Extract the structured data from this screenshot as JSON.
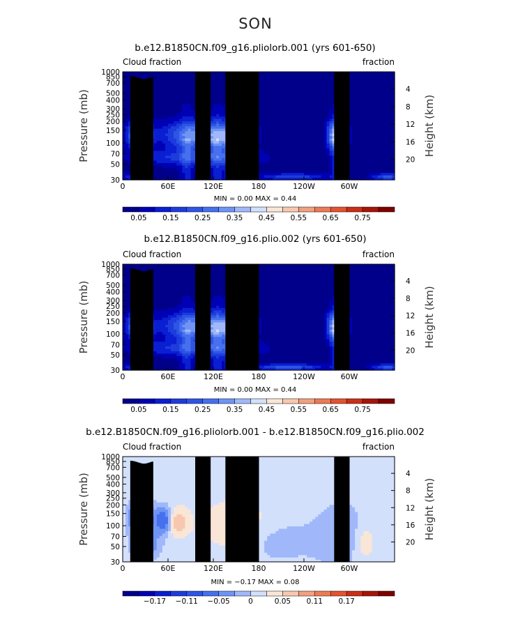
{
  "chart_data": {
    "type": "heatmap",
    "title": "SON",
    "x_ticks": [
      {
        "lon": 0,
        "label": "0"
      },
      {
        "lon": 60,
        "label": "60E"
      },
      {
        "lon": 120,
        "label": "120E"
      },
      {
        "lon": 180,
        "label": "180"
      },
      {
        "lon": 240,
        "label": "120W"
      },
      {
        "lon": 300,
        "label": "60W"
      }
    ],
    "xlim": [
      0,
      360
    ],
    "pressure_ticks": [
      1000,
      850,
      700,
      500,
      400,
      300,
      250,
      200,
      150,
      100,
      70,
      50,
      30
    ],
    "height_ticks": [
      4,
      8,
      12,
      16,
      20
    ],
    "ylabel": "Pressure (mb)",
    "ylabel_right": "Height (km)",
    "panels": [
      {
        "title": "b.e12.B1850CN.f09_g16.pliolorb.001 (yrs 601-650)",
        "left_label": "Cloud fraction",
        "right_label": "fraction",
        "stats": "MIN =    0.00   MAX =    0.44",
        "min": 0.0,
        "max": 0.44,
        "colorbar_labels": [
          "0.05",
          "0.15",
          "0.25",
          "0.35",
          "0.45",
          "0.55",
          "0.65",
          "0.75"
        ],
        "levels": [
          0.0,
          0.05,
          0.1,
          0.15,
          0.2,
          0.25,
          0.3,
          0.35,
          0.4,
          0.45,
          0.5,
          0.55,
          0.6,
          0.65,
          0.7,
          0.75,
          0.8
        ]
      },
      {
        "title": "b.e12.B1850CN.f09_g16.plio.002 (yrs 601-650)",
        "left_label": "Cloud fraction",
        "right_label": "fraction",
        "stats": "MIN =    0.00   MAX =    0.44",
        "min": 0.0,
        "max": 0.44,
        "colorbar_labels": [
          "0.05",
          "0.15",
          "0.25",
          "0.35",
          "0.45",
          "0.55",
          "0.65",
          "0.75"
        ],
        "levels": [
          0.0,
          0.05,
          0.1,
          0.15,
          0.2,
          0.25,
          0.3,
          0.35,
          0.4,
          0.45,
          0.5,
          0.55,
          0.6,
          0.65,
          0.7,
          0.75,
          0.8
        ]
      },
      {
        "title": "b.e12.B1850CN.f09_g16.pliolorb.001 - b.e12.B1850CN.f09_g16.plio.002",
        "left_label": "Cloud fraction",
        "right_label": "fraction",
        "stats": "MIN =   −0.17   MAX =    0.08",
        "min": -0.17,
        "max": 0.08,
        "colorbar_labels": [
          "−0.17",
          "−0.11",
          "−0.05",
          "0",
          "0.05",
          "0.11",
          "0.17"
        ],
        "levels": [
          -0.23,
          -0.2,
          -0.17,
          -0.14,
          -0.11,
          -0.08,
          -0.05,
          -0.02,
          0.0,
          0.02,
          0.05,
          0.08,
          0.11,
          0.14,
          0.17,
          0.2,
          0.23
        ]
      }
    ],
    "colors_seq": [
      "#00008b",
      "#0000b4",
      "#0a1ed2",
      "#1e3cdc",
      "#2d55e6",
      "#4670ee",
      "#6e94f5",
      "#a0b8fa",
      "#d2e0fc",
      "#fae6d7",
      "#f7c8af",
      "#f2a080",
      "#ec7a57",
      "#e35330",
      "#cc2e16",
      "#a81408",
      "#7d0200"
    ],
    "colors_div": [
      "#00008b",
      "#0000b4",
      "#0a1ed2",
      "#1e3cdc",
      "#2d55e6",
      "#4670ee",
      "#6e94f5",
      "#a0b8fa",
      "#d2e0fc",
      "#fae6d7",
      "#f7c8af",
      "#f2a080",
      "#ec7a57",
      "#e35330",
      "#cc2e16",
      "#a81408",
      "#7d0200"
    ]
  }
}
